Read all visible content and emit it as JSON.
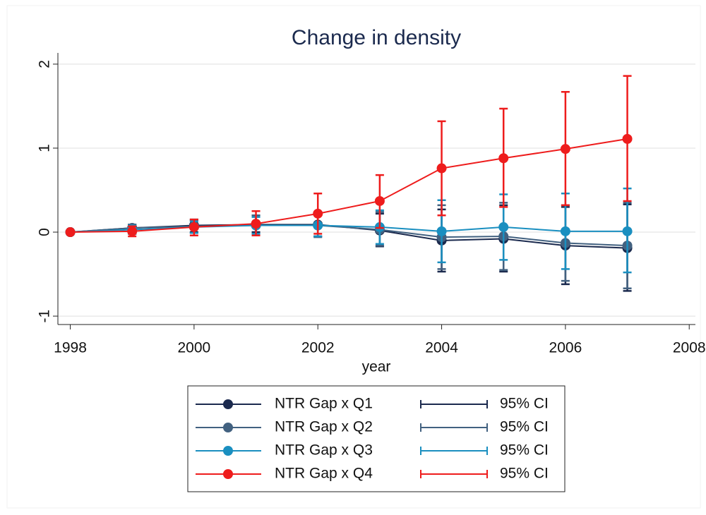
{
  "chart_data": {
    "type": "line",
    "title": "Change in density",
    "xlabel": "year",
    "x": [
      1998,
      1999,
      2000,
      2001,
      2002,
      2003,
      2004,
      2005,
      2006,
      2007
    ],
    "xlim": [
      1997.8,
      2008.1
    ],
    "xticks": [
      1998,
      2000,
      2002,
      2004,
      2006,
      2008
    ],
    "ylim": [
      -1.1,
      2.1
    ],
    "yticks": [
      -1,
      0,
      1,
      2
    ],
    "grid": true,
    "series": [
      {
        "name": "NTR Gap x Q1",
        "ci_name": "95% CI",
        "color": "#1b2a4e",
        "values": [
          0,
          0.05,
          0.08,
          0.09,
          0.09,
          0.02,
          -0.1,
          -0.08,
          -0.16,
          -0.19
        ],
        "ci_low": [
          0,
          -0.02,
          0,
          0,
          -0.05,
          -0.17,
          -0.47,
          -0.47,
          -0.62,
          -0.7
        ],
        "ci_high": [
          0,
          0.09,
          0.15,
          0.2,
          0.22,
          0.22,
          0.27,
          0.32,
          0.3,
          0.33
        ]
      },
      {
        "name": "NTR Gap x Q2",
        "ci_name": "95% CI",
        "color": "#426180",
        "values": [
          0,
          0.05,
          0.07,
          0.08,
          0.08,
          0.03,
          -0.06,
          -0.05,
          -0.13,
          -0.16
        ],
        "ci_low": [
          0,
          -0.02,
          -0.01,
          -0.02,
          -0.06,
          -0.16,
          -0.44,
          -0.45,
          -0.58,
          -0.67
        ],
        "ci_high": [
          0,
          0.09,
          0.14,
          0.2,
          0.22,
          0.24,
          0.32,
          0.35,
          0.32,
          0.35
        ]
      },
      {
        "name": "NTR Gap x Q3",
        "ci_name": "95% CI",
        "color": "#1a8fc0",
        "values": [
          0,
          0.03,
          0.06,
          0.08,
          0.08,
          0.06,
          0.01,
          0.06,
          0.01,
          0.01
        ],
        "ci_low": [
          0,
          -0.02,
          -0.01,
          -0.02,
          -0.05,
          -0.14,
          -0.36,
          -0.33,
          -0.44,
          -0.48
        ],
        "ci_high": [
          0,
          0.08,
          0.13,
          0.18,
          0.21,
          0.26,
          0.38,
          0.45,
          0.46,
          0.52
        ]
      },
      {
        "name": "NTR Gap x Q4",
        "ci_name": "95% CI",
        "color": "#ee1c1c",
        "values": [
          0,
          0.01,
          0.06,
          0.1,
          0.22,
          0.37,
          0.76,
          0.88,
          0.99,
          1.11
        ],
        "ci_low": [
          0,
          -0.05,
          -0.04,
          -0.04,
          -0.02,
          0.05,
          0.2,
          0.3,
          0.32,
          0.37
        ],
        "ci_high": [
          0,
          0.07,
          0.15,
          0.25,
          0.46,
          0.68,
          1.32,
          1.47,
          1.67,
          1.86
        ]
      }
    ]
  }
}
